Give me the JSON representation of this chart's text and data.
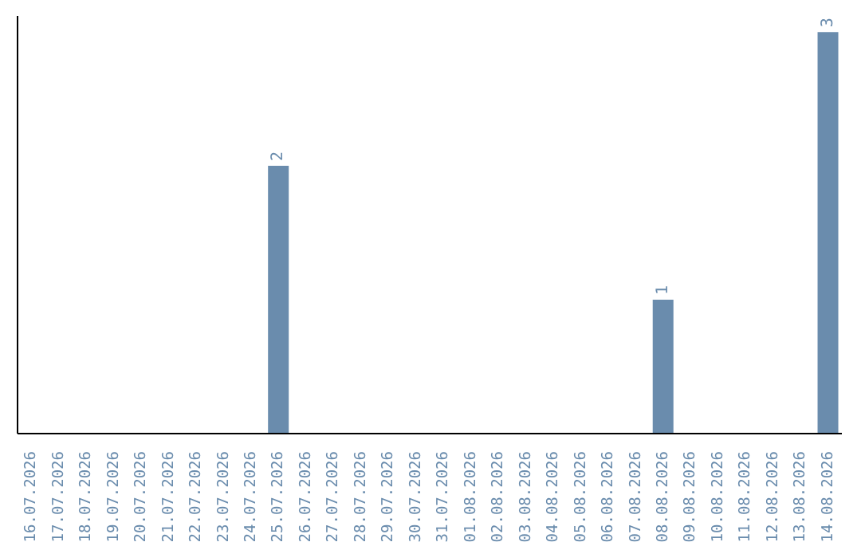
{
  "chart_data": {
    "type": "bar",
    "categories": [
      "16.07.2026",
      "17.07.2026",
      "18.07.2026",
      "19.07.2026",
      "20.07.2026",
      "21.07.2026",
      "22.07.2026",
      "23.07.2026",
      "24.07.2026",
      "25.07.2026",
      "26.07.2026",
      "27.07.2026",
      "28.07.2026",
      "29.07.2026",
      "30.07.2026",
      "31.07.2026",
      "01.08.2026",
      "02.08.2026",
      "03.08.2026",
      "04.08.2026",
      "05.08.2026",
      "06.08.2026",
      "07.08.2026",
      "08.08.2026",
      "09.08.2026",
      "10.08.2026",
      "11.08.2026",
      "12.08.2026",
      "13.08.2026",
      "14.08.2026"
    ],
    "values": [
      0,
      0,
      0,
      0,
      0,
      0,
      0,
      0,
      0,
      2,
      0,
      0,
      0,
      0,
      0,
      0,
      0,
      0,
      0,
      0,
      0,
      0,
      0,
      1,
      0,
      0,
      0,
      0,
      0,
      3
    ],
    "value_labels": [
      null,
      null,
      null,
      null,
      null,
      null,
      null,
      null,
      null,
      "2",
      null,
      null,
      null,
      null,
      null,
      null,
      null,
      null,
      null,
      null,
      null,
      null,
      null,
      "1",
      null,
      null,
      null,
      null,
      null,
      "3"
    ],
    "color": "#6a8cad",
    "grid": false,
    "legend": false
  }
}
